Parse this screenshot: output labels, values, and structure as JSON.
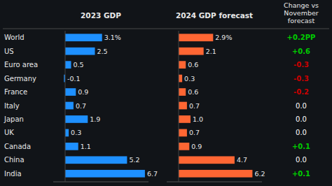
{
  "chart_data": {
    "type": "bar",
    "orientation": "horizontal",
    "categories": [
      "World",
      "US",
      "Euro area",
      "Germany",
      "France",
      "Italy",
      "Japan",
      "UK",
      "Canada",
      "China",
      "India"
    ],
    "series": [
      {
        "name": "2023 GDP",
        "color": "#1e90ff",
        "values": [
          3.1,
          2.5,
          0.5,
          -0.1,
          0.9,
          0.7,
          1.9,
          0.3,
          1.1,
          5.2,
          6.7
        ],
        "value_labels": [
          "3.1%",
          "2.5",
          "0.5",
          "-0.1",
          "0.9",
          "0.7",
          "1.9",
          "0.3",
          "1.1",
          "5.2",
          "6.7"
        ]
      },
      {
        "name": "2024 GDP forecast",
        "color": "#ff6633",
        "values": [
          2.9,
          2.1,
          0.6,
          0.3,
          0.6,
          0.7,
          1.0,
          0.7,
          0.9,
          4.7,
          6.2
        ],
        "value_labels": [
          "2.9%",
          "2.1",
          "0.6",
          "0.3",
          "0.6",
          "0.7",
          "1.0",
          "0.7",
          "0.9",
          "4.7",
          "6.2"
        ]
      }
    ],
    "xlim": [
      -1,
      7
    ],
    "data_labels": true,
    "tick_labels": false,
    "change": {
      "name": "Change vs\nNovember\nforecast",
      "values": [
        0.2,
        0.6,
        -0.3,
        -0.3,
        -0.2,
        0.0,
        0.0,
        0.0,
        0.1,
        0.0,
        0.1
      ],
      "value_labels": [
        "+0.2PP",
        "+0.6",
        "-0.3",
        "-0.3",
        "-0.2",
        "0.0",
        "0.0",
        "0.0",
        "+0.1",
        "0.0",
        "+0.1"
      ],
      "colors": [
        "#00cc00",
        "#00cc00",
        "#cc0000",
        "#cc0000",
        "#cc0000",
        "#ffffff",
        "#ffffff",
        "#ffffff",
        "#00cc00",
        "#ffffff",
        "#00cc00"
      ]
    }
  }
}
